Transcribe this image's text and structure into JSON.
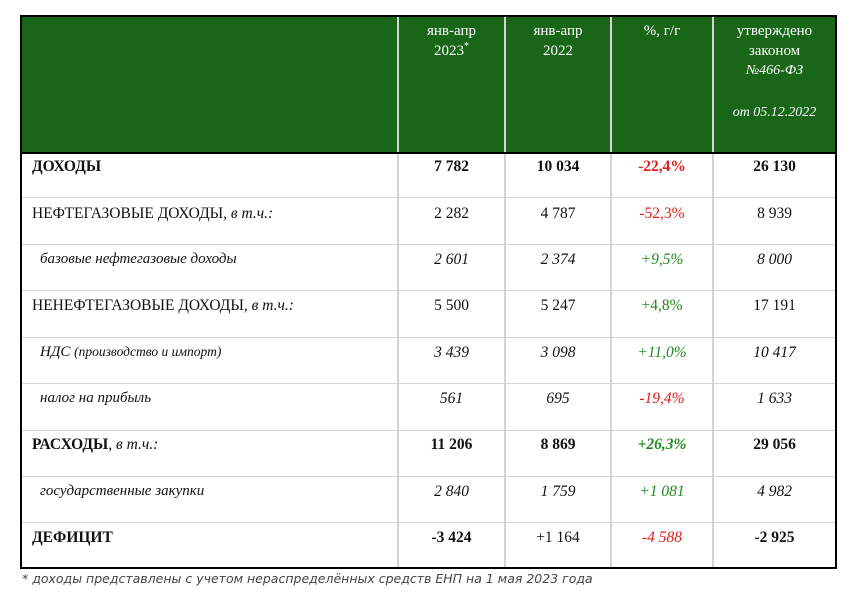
{
  "header": {
    "col1": "янв-апр",
    "col1_year": "2023",
    "col1_mark": "*",
    "col2": "янв-апр",
    "col2_year": "2022",
    "col3": "%, г/г",
    "col4_line1": "утверждено",
    "col4_line2": "законом",
    "col4_line3": "№466-ФЗ",
    "col4_line4": "от 05.12.2022"
  },
  "rows": [
    {
      "label": "ДОХОДЫ",
      "suffix": "",
      "v2023": "7 782",
      "v2022": "10 034",
      "pct": "-22,4%",
      "law": "26 130"
    },
    {
      "label": "НЕФТЕГАЗОВЫЕ ДОХОДЫ",
      "suffix": ", в т.ч.:",
      "v2023": "2 282",
      "v2022": "4 787",
      "pct": "-52,3%",
      "law": "8 939"
    },
    {
      "label": "базовые нефтегазовые доходы",
      "suffix": "",
      "v2023": "2 601",
      "v2022": "2 374",
      "pct": "+9,5%",
      "law": "8 000"
    },
    {
      "label": "НЕНЕФТЕГАЗОВЫЕ ДОХОДЫ",
      "suffix": ", в т.ч.:",
      "v2023": "5 500",
      "v2022": "5 247",
      "pct": "+4,8%",
      "law": "17 191"
    },
    {
      "label": "НДС",
      "suffix": "(производство и импорт)",
      "v2023": "3 439",
      "v2022": "3 098",
      "pct": "+11,0%",
      "law": "10 417"
    },
    {
      "label": "налог на прибыль",
      "suffix": "",
      "v2023": "561",
      "v2022": "695",
      "pct": "-19,4%",
      "law": "1 633"
    },
    {
      "label": "РАСХОДЫ",
      "suffix": ", в т.ч.:",
      "v2023": "11 206",
      "v2022": "8 869",
      "pct": "+26,3%",
      "law": "29 056"
    },
    {
      "label": "государственные закупки",
      "suffix": "",
      "v2023": "2 840",
      "v2022": "1 759",
      "pct": "+1 081",
      "law": "4 982"
    },
    {
      "label": "ДЕФИЦИТ",
      "suffix": "",
      "v2023": "-3 424",
      "v2022": "+1 164",
      "pct": "-4 588",
      "law": "-2 925"
    }
  ],
  "footnote": "* доходы представлены с учетом нераспределённых средств ЕНП на 1 мая 2023 года",
  "colors": {
    "header_bg": "#196619",
    "negative": "#e21b1b",
    "positive": "#1f8a1f"
  }
}
